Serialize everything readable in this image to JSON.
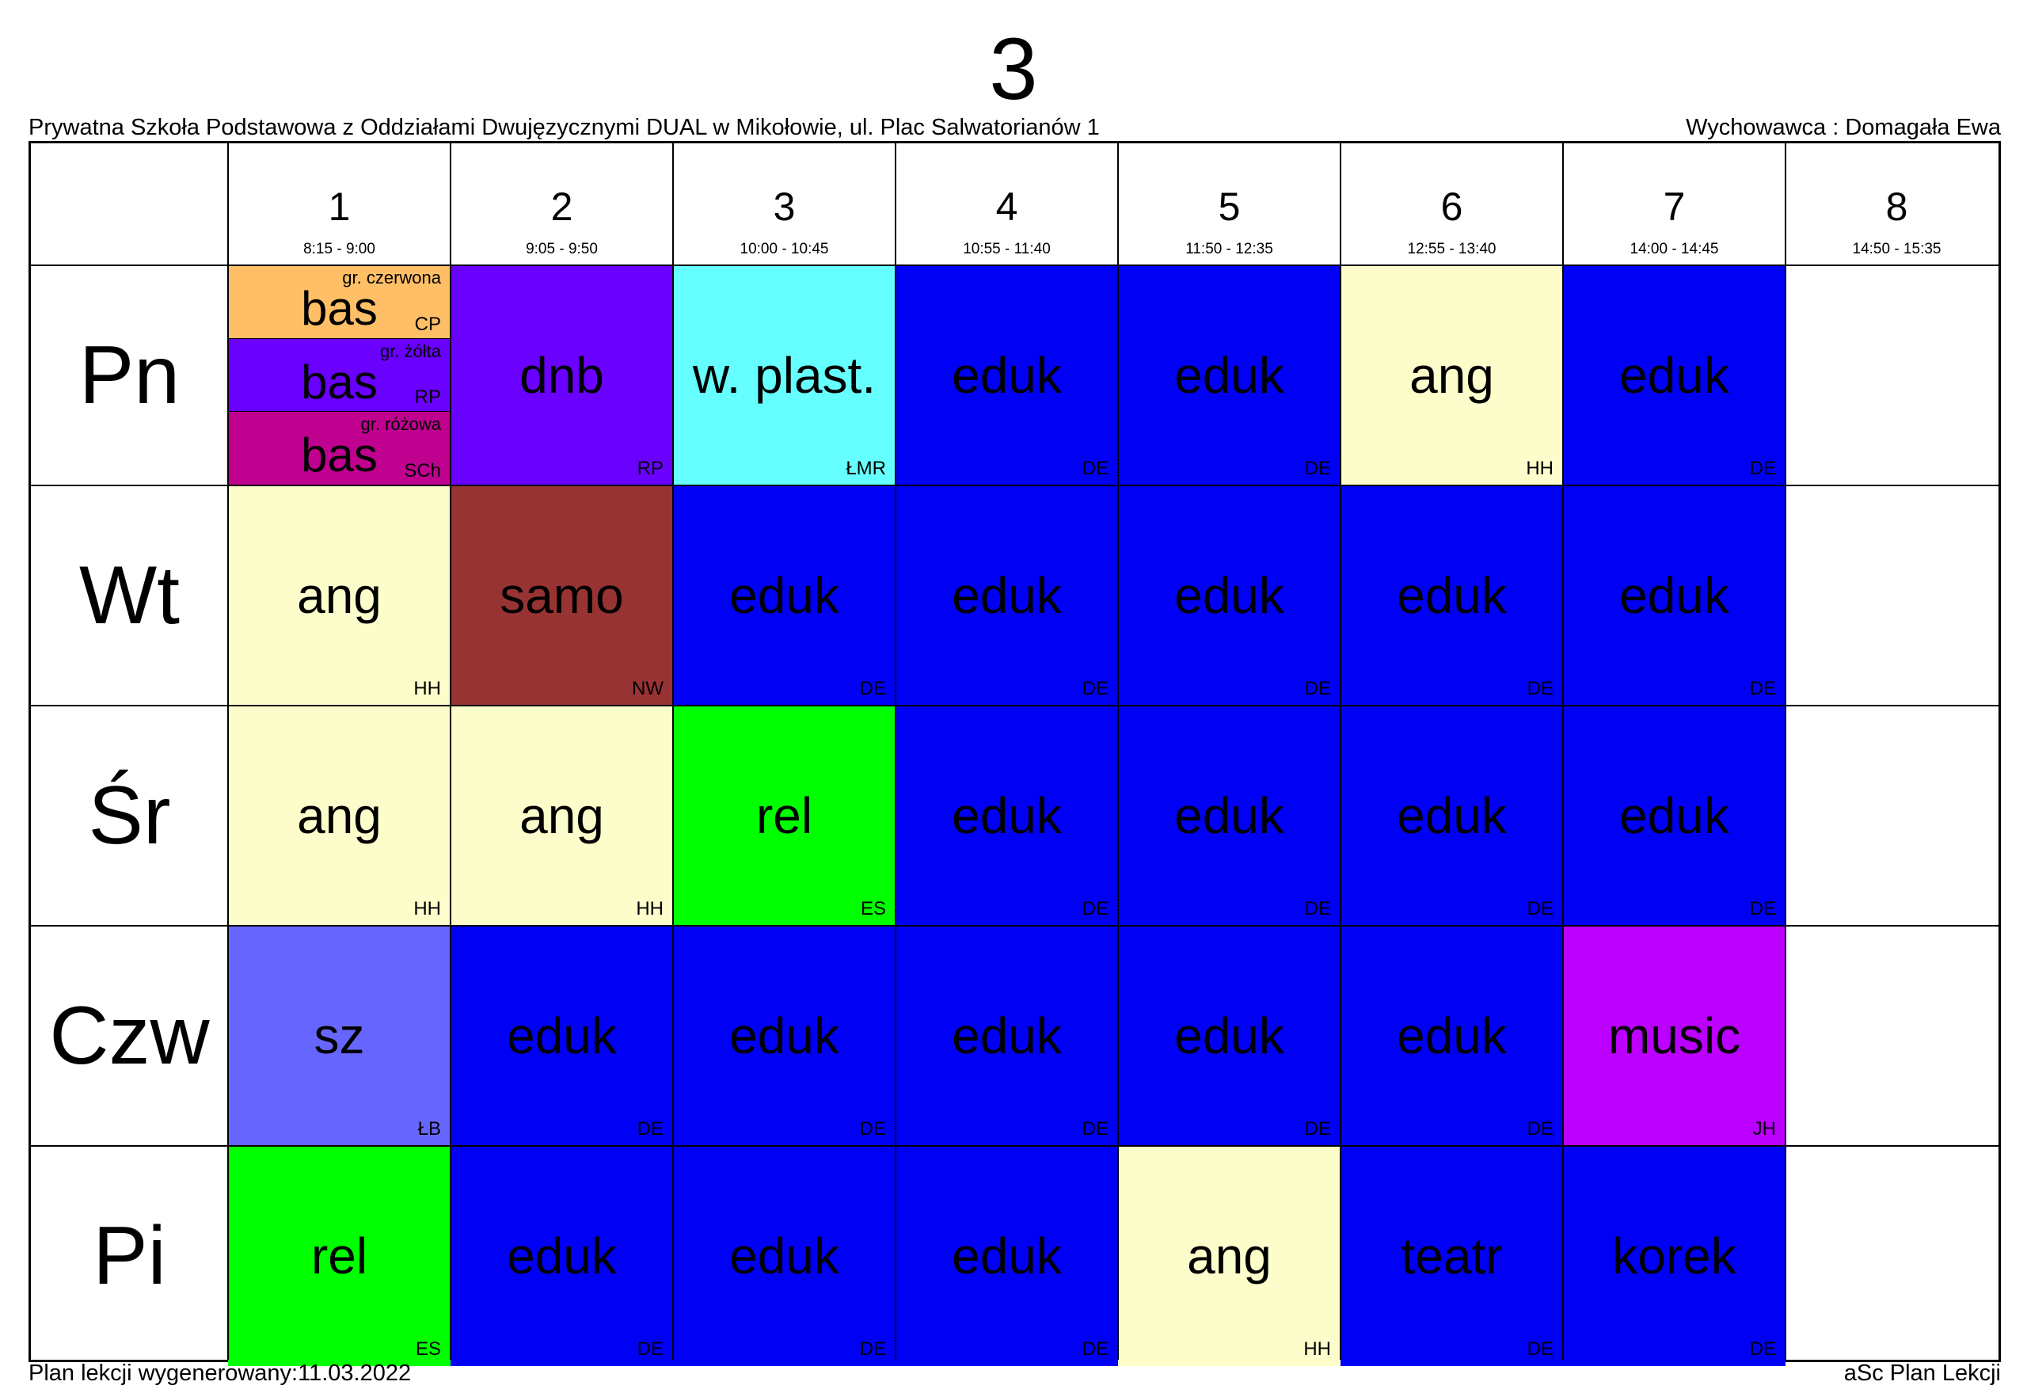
{
  "header": {
    "class_name": "3",
    "school": "Prywatna Szkoła Podstawowa z Oddziałami Dwujęzycznymi DUAL w Mikołowie, ul. Plac Salwatorianów 1",
    "teacher": "Wychowawca : Domagała Ewa"
  },
  "periods": [
    {
      "num": "1",
      "time": "8:15 - 9:00"
    },
    {
      "num": "2",
      "time": "9:05 - 9:50"
    },
    {
      "num": "3",
      "time": "10:00 - 10:45"
    },
    {
      "num": "4",
      "time": "10:55 - 11:40"
    },
    {
      "num": "5",
      "time": "11:50 - 12:35"
    },
    {
      "num": "6",
      "time": "12:55 - 13:40"
    },
    {
      "num": "7",
      "time": "14:00 - 14:45"
    },
    {
      "num": "8",
      "time": "14:50 - 15:35"
    }
  ],
  "days": [
    "Pn",
    "Wt",
    "Śr",
    "Czw",
    "Pi"
  ],
  "colors": {
    "eduk": "#0000f5",
    "ang": "#fdfdcb",
    "purple": "#6a00fe",
    "cyan": "#66ffff",
    "brown": "#973333",
    "green": "#00ff00",
    "periwinkle": "#6666ff",
    "violet": "#bb00ff",
    "orange": "#ffbf66",
    "magenta": "#c0008f"
  },
  "schedule": [
    [
      {
        "groups": [
          {
            "subject": "bas",
            "group": "gr. czerwona",
            "teacher": "CP",
            "color": "#ffbf66"
          },
          {
            "subject": "bas",
            "group": "gr. żółta",
            "teacher": "RP",
            "color": "#6a00fe"
          },
          {
            "subject": "bas",
            "group": "gr. różowa",
            "teacher": "SCh",
            "color": "#c0008f"
          }
        ]
      },
      {
        "subject": "dnb",
        "teacher": "RP",
        "color": "#6a00fe"
      },
      {
        "subject": "w. plast.",
        "teacher": "ŁMR",
        "color": "#66ffff"
      },
      {
        "subject": "eduk",
        "teacher": "DE",
        "color": "#0000f5"
      },
      {
        "subject": "eduk",
        "teacher": "DE",
        "color": "#0000f5"
      },
      {
        "subject": "ang",
        "teacher": "HH",
        "color": "#fdfdcb"
      },
      {
        "subject": "eduk",
        "teacher": "DE",
        "color": "#0000f5"
      },
      null
    ],
    [
      {
        "subject": "ang",
        "teacher": "HH",
        "color": "#fdfdcb"
      },
      {
        "subject": "samo",
        "teacher": "NW",
        "color": "#973333"
      },
      {
        "subject": "eduk",
        "teacher": "DE",
        "color": "#0000f5"
      },
      {
        "subject": "eduk",
        "teacher": "DE",
        "color": "#0000f5"
      },
      {
        "subject": "eduk",
        "teacher": "DE",
        "color": "#0000f5"
      },
      {
        "subject": "eduk",
        "teacher": "DE",
        "color": "#0000f5"
      },
      {
        "subject": "eduk",
        "teacher": "DE",
        "color": "#0000f5"
      },
      null
    ],
    [
      {
        "subject": "ang",
        "teacher": "HH",
        "color": "#fdfdcb"
      },
      {
        "subject": "ang",
        "teacher": "HH",
        "color": "#fdfdcb"
      },
      {
        "subject": "rel",
        "teacher": "ES",
        "color": "#00ff00"
      },
      {
        "subject": "eduk",
        "teacher": "DE",
        "color": "#0000f5"
      },
      {
        "subject": "eduk",
        "teacher": "DE",
        "color": "#0000f5"
      },
      {
        "subject": "eduk",
        "teacher": "DE",
        "color": "#0000f5"
      },
      {
        "subject": "eduk",
        "teacher": "DE",
        "color": "#0000f5"
      },
      null
    ],
    [
      {
        "subject": "sz",
        "teacher": "ŁB",
        "color": "#6666ff"
      },
      {
        "subject": "eduk",
        "teacher": "DE",
        "color": "#0000f5"
      },
      {
        "subject": "eduk",
        "teacher": "DE",
        "color": "#0000f5"
      },
      {
        "subject": "eduk",
        "teacher": "DE",
        "color": "#0000f5"
      },
      {
        "subject": "eduk",
        "teacher": "DE",
        "color": "#0000f5"
      },
      {
        "subject": "eduk",
        "teacher": "DE",
        "color": "#0000f5"
      },
      {
        "subject": "music",
        "teacher": "JH",
        "color": "#bb00ff"
      },
      null
    ],
    [
      {
        "subject": "rel",
        "teacher": "ES",
        "color": "#00ff00"
      },
      {
        "subject": "eduk",
        "teacher": "DE",
        "color": "#0000f5"
      },
      {
        "subject": "eduk",
        "teacher": "DE",
        "color": "#0000f5"
      },
      {
        "subject": "eduk",
        "teacher": "DE",
        "color": "#0000f5"
      },
      {
        "subject": "ang",
        "teacher": "HH",
        "color": "#fdfdcb"
      },
      {
        "subject": "teatr",
        "teacher": "DE",
        "color": "#0000f5"
      },
      {
        "subject": "korek",
        "teacher": "DE",
        "color": "#0000f5"
      },
      null
    ]
  ],
  "footer": {
    "generated": "Plan lekcji wygenerowany:11.03.2022",
    "app": "aSc Plan Lekcji"
  }
}
